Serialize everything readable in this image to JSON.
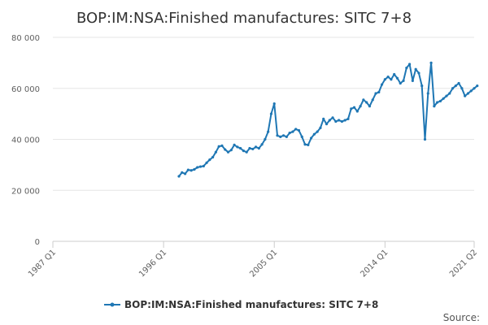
{
  "chart_data": {
    "type": "line",
    "title": "BOP:IM:NSA:Finished manufactures: SITC 7+8",
    "xlabel": "",
    "ylabel": "",
    "ylim": [
      0,
      80000
    ],
    "y_ticks": [
      "0",
      "20 000",
      "40 000",
      "60 000",
      "80 000"
    ],
    "y_tick_values": [
      0,
      20000,
      40000,
      60000,
      80000
    ],
    "x_ticks": [
      "1987 Q1",
      "1996 Q1",
      "2005 Q1",
      "2014 Q1",
      "2021 Q2"
    ],
    "x_tick_values": [
      1987.0,
      1996.0,
      2005.0,
      2014.0,
      2021.25
    ],
    "grid": "horizontal",
    "legend_position": "bottom",
    "color": "#1f77b4",
    "series": [
      {
        "name": "BOP:IM:NSA:Finished manufactures: SITC 7+8",
        "x": [
          1997.25,
          1997.5,
          1997.75,
          1998.0,
          1998.25,
          1998.5,
          1998.75,
          1999.0,
          1999.25,
          1999.5,
          1999.75,
          2000.0,
          2000.25,
          2000.5,
          2000.75,
          2001.0,
          2001.25,
          2001.5,
          2001.75,
          2002.0,
          2002.25,
          2002.5,
          2002.75,
          2003.0,
          2003.25,
          2003.5,
          2003.75,
          2004.0,
          2004.25,
          2004.5,
          2004.75,
          2005.0,
          2005.25,
          2005.5,
          2005.75,
          2006.0,
          2006.25,
          2006.5,
          2006.75,
          2007.0,
          2007.25,
          2007.5,
          2007.75,
          2008.0,
          2008.25,
          2008.5,
          2008.75,
          2009.0,
          2009.25,
          2009.5,
          2009.75,
          2010.0,
          2010.25,
          2010.5,
          2010.75,
          2011.0,
          2011.25,
          2011.5,
          2011.75,
          2012.0,
          2012.25,
          2012.5,
          2012.75,
          2013.0,
          2013.25,
          2013.5,
          2013.75,
          2014.0,
          2014.25,
          2014.5,
          2014.75,
          2015.0,
          2015.25,
          2015.5,
          2015.75,
          2016.0,
          2016.25,
          2016.5,
          2016.75,
          2017.0,
          2017.25,
          2017.5,
          2017.75,
          2018.0,
          2018.25,
          2018.5,
          2018.75,
          2019.0,
          2019.25,
          2019.5,
          2019.75,
          2020.0,
          2020.25,
          2020.5,
          2020.75,
          2021.0,
          2021.25,
          2021.5
        ],
        "values": [
          25500,
          27000,
          26500,
          28000,
          27800,
          28200,
          29000,
          29300,
          29500,
          30800,
          32000,
          33000,
          35000,
          37200,
          37500,
          36000,
          35000,
          35800,
          37800,
          37000,
          36500,
          35500,
          35000,
          36500,
          36200,
          37000,
          36500,
          38000,
          40000,
          43000,
          50000,
          54000,
          41500,
          41000,
          41500,
          41000,
          42500,
          43000,
          44000,
          43500,
          41000,
          38000,
          37800,
          40500,
          42000,
          43000,
          44500,
          48000,
          46000,
          47500,
          48500,
          47000,
          47500,
          47000,
          47500,
          48000,
          52000,
          52500,
          51000,
          53000,
          55500,
          54500,
          53000,
          55500,
          58000,
          58500,
          61500,
          63500,
          64500,
          63500,
          65500,
          64000,
          62000,
          63000,
          68000,
          69500,
          63000,
          67500,
          66000,
          61000,
          40000,
          58000,
          70000,
          53000,
          54500,
          55000,
          56000,
          57000,
          58000,
          60000,
          61000,
          62000,
          60000,
          57000,
          58000,
          59000,
          60000,
          61000
        ]
      }
    ]
  },
  "legend": {
    "label": "BOP:IM:NSA:Finished manufactures: SITC 7+8"
  },
  "source_label": "Source:"
}
